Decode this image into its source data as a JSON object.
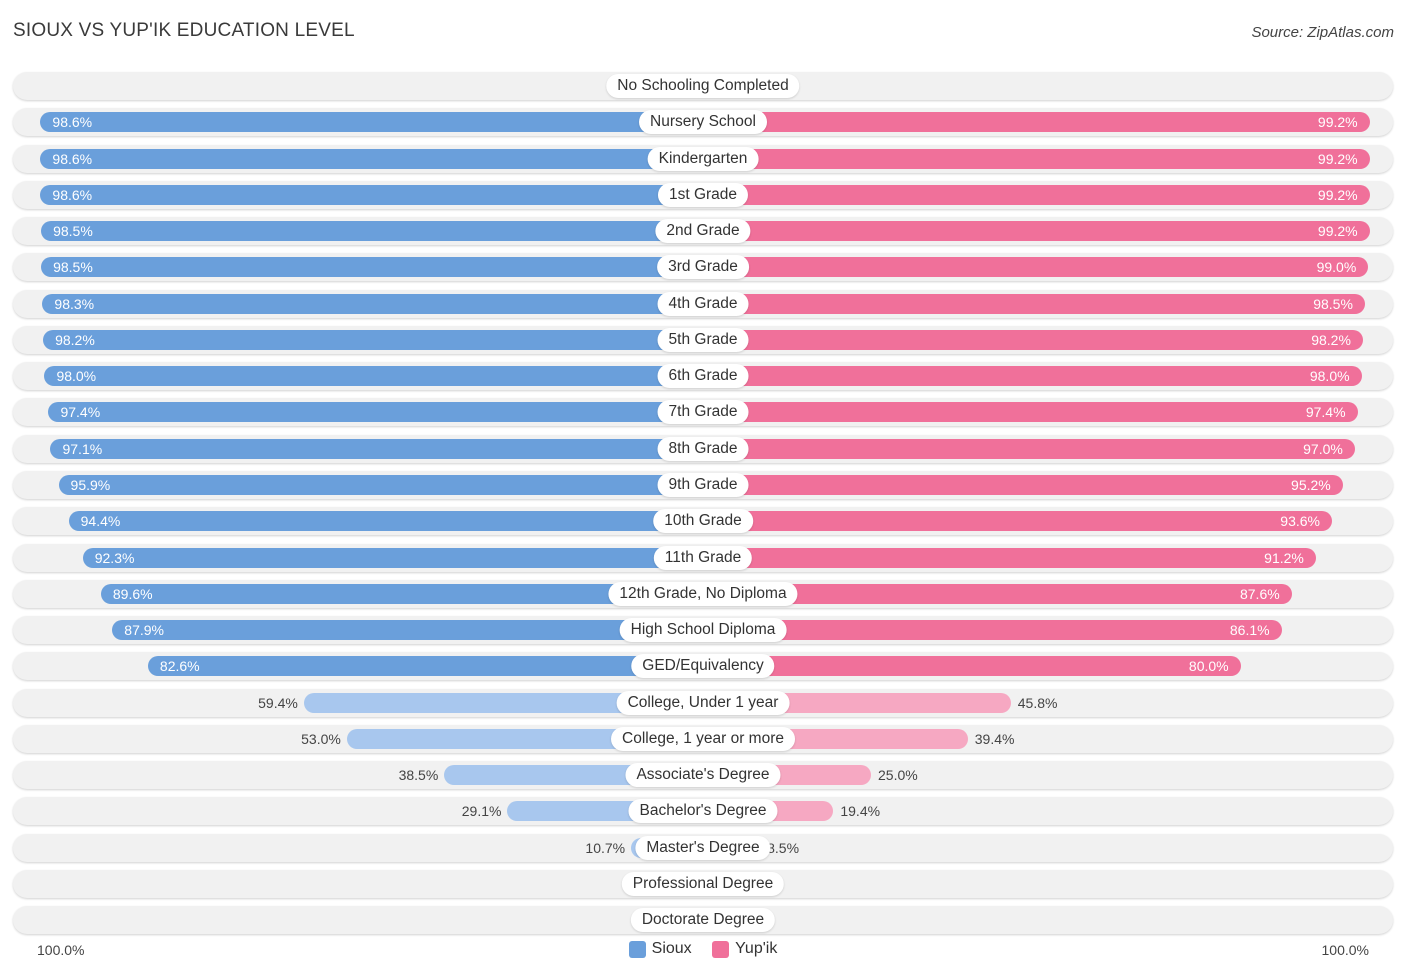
{
  "title": "SIOUX VS YUP'IK EDUCATION LEVEL",
  "source": "Source: ZipAtlas.com",
  "colors": {
    "left": "#6a9fdb",
    "right": "#f0709a",
    "left_light": "#a8c7ee",
    "right_light": "#f6a8c2"
  },
  "axis": {
    "left_label": "100.0%",
    "right_label": "100.0%"
  },
  "legend": [
    {
      "name": "Sioux",
      "color": "#6a9fdb"
    },
    {
      "name": "Yup'ik",
      "color": "#f0709a"
    }
  ],
  "chart_data": {
    "type": "bar",
    "orientation": "diverging-horizontal",
    "title": "SIOUX VS YUP'IK EDUCATION LEVEL",
    "xlim": [
      0,
      100
    ],
    "categories": [
      "No Schooling Completed",
      "Nursery School",
      "Kindergarten",
      "1st Grade",
      "2nd Grade",
      "3rd Grade",
      "4th Grade",
      "5th Grade",
      "6th Grade",
      "7th Grade",
      "8th Grade",
      "9th Grade",
      "10th Grade",
      "11th Grade",
      "12th Grade, No Diploma",
      "High School Diploma",
      "GED/Equivalency",
      "College, Under 1 year",
      "College, 1 year or more",
      "Associate's Degree",
      "Bachelor's Degree",
      "Master's Degree",
      "Professional Degree",
      "Doctorate Degree"
    ],
    "series": [
      {
        "name": "Sioux",
        "values": [
          1.8,
          98.6,
          98.6,
          98.6,
          98.5,
          98.5,
          98.3,
          98.2,
          98.0,
          97.4,
          97.1,
          95.9,
          94.4,
          92.3,
          89.6,
          87.9,
          82.6,
          59.4,
          53.0,
          38.5,
          29.1,
          10.7,
          3.3,
          1.5
        ]
      },
      {
        "name": "Yup'ik",
        "values": [
          1.2,
          99.2,
          99.2,
          99.2,
          99.2,
          99.0,
          98.5,
          98.2,
          98.0,
          97.4,
          97.0,
          95.2,
          93.6,
          91.2,
          87.6,
          86.1,
          80.0,
          45.8,
          39.4,
          25.0,
          19.4,
          8.5,
          2.9,
          1.3
        ]
      }
    ]
  }
}
